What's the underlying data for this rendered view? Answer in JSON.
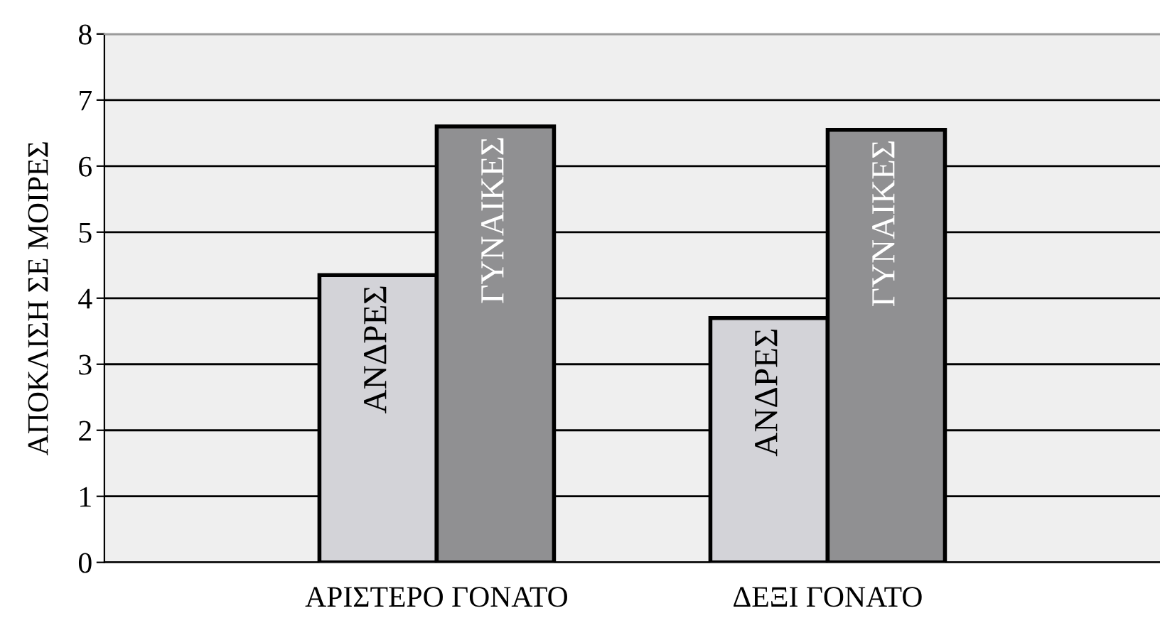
{
  "chart_data": {
    "type": "bar",
    "ylabel": "ΑΠΟΚΛΙΣΗ ΣΕ ΜΟΙΡΕΣ",
    "categories": [
      "ΑΡΙΣΤΕΡΟ ΓΟΝΑΤΟ",
      "ΔΕΞΙ ΓΟΝΑΤΟ"
    ],
    "series": [
      {
        "name": "ΑΝΔΡΕΣ",
        "color": "#d3d3d8",
        "values": [
          4.35,
          3.7
        ]
      },
      {
        "name": "ΓΥΝΑΙΚΕΣ",
        "color": "#909092",
        "values": [
          6.6,
          6.55
        ]
      }
    ],
    "ylim": [
      0,
      8
    ],
    "yticks": [
      0,
      1,
      2,
      3,
      4,
      5,
      6,
      7,
      8
    ],
    "grid": "y",
    "legend": false
  }
}
